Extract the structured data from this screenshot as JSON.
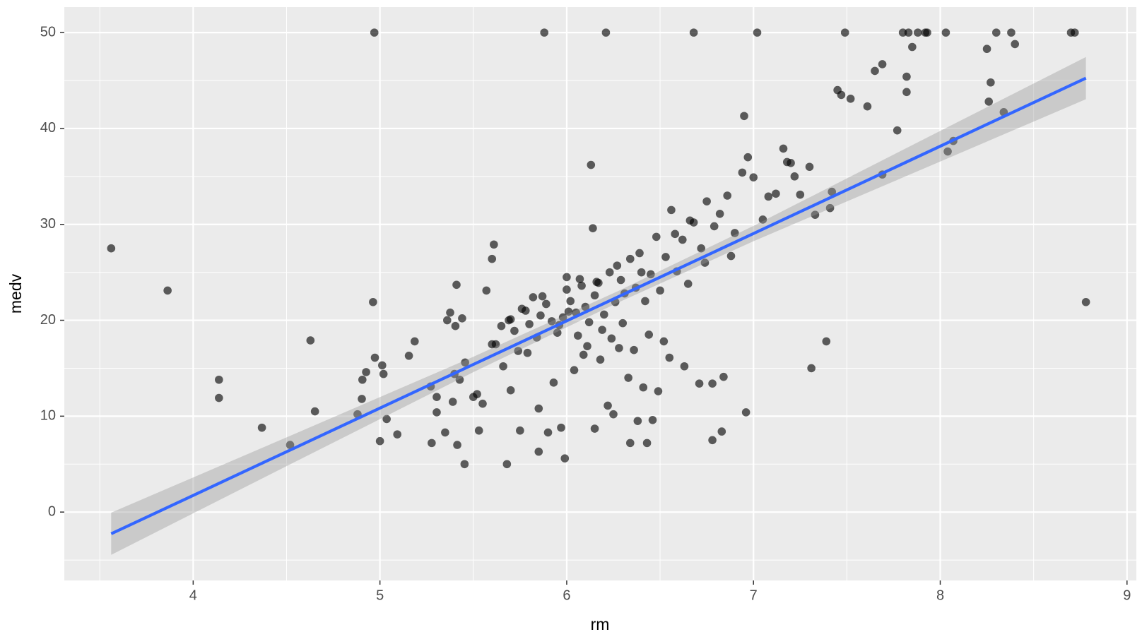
{
  "chart_data": {
    "type": "scatter",
    "x_label": "rm",
    "y_label": "medv",
    "xlim": [
      3.31,
      9.05
    ],
    "ylim": [
      -7.13,
      52.66
    ],
    "xticks": [
      4,
      5,
      6,
      7,
      8,
      9
    ],
    "yticks": [
      0,
      10,
      20,
      30,
      40,
      50
    ],
    "grid": true,
    "series": [
      {
        "name": "points",
        "color": "#000000",
        "x": [
          3.561,
          3.863,
          4.138,
          4.138,
          4.368,
          4.519,
          4.628,
          4.652,
          4.88,
          4.903,
          4.906,
          4.926,
          4.963,
          4.97,
          4.973,
          5.0,
          5.012,
          5.019,
          5.036,
          5.093,
          5.155,
          5.186,
          5.272,
          5.277,
          5.304,
          5.304,
          5.349,
          5.36,
          5.376,
          5.39,
          5.399,
          5.404,
          5.414,
          5.427,
          5.41,
          5.453,
          5.456,
          5.44,
          5.52,
          5.53,
          5.57,
          5.6,
          5.61,
          5.6,
          5.68,
          5.7,
          5.75,
          5.79,
          5.85,
          5.85,
          5.88,
          5.9,
          5.97,
          5.99,
          6.13,
          6.14,
          6.21,
          6.15,
          6.22,
          6.25,
          6.34,
          6.38,
          6.43,
          6.46,
          6.68,
          6.71,
          6.95,
          6.97,
          7.02,
          7.16,
          7.2,
          7.45,
          7.49,
          7.47,
          7.52,
          7.61,
          7.65,
          7.69,
          7.69,
          7.77,
          7.8,
          7.82,
          7.82,
          7.83,
          7.85,
          7.88,
          7.92,
          7.93,
          8.03,
          8.04,
          8.07,
          8.25,
          8.26,
          8.27,
          8.3,
          8.34,
          8.38,
          8.4,
          8.7,
          8.72,
          8.78,
          7.31,
          7.39,
          7.42,
          7.41,
          7.33,
          7.3,
          6.96,
          6.83,
          6.78,
          6.84,
          6.78,
          5.65,
          5.7,
          5.72,
          5.76,
          5.8,
          5.82,
          5.86,
          5.89,
          5.92,
          5.95,
          5.98,
          6.0,
          6.02,
          6.05,
          6.07,
          6.1,
          6.12,
          6.15,
          6.17,
          6.2,
          6.23,
          6.26,
          6.29,
          6.31,
          6.34,
          6.37,
          6.4,
          6.42,
          6.45,
          6.48,
          6.5,
          6.53,
          6.56,
          6.59,
          6.62,
          6.65,
          6.68,
          6.72,
          6.75,
          6.79,
          6.82,
          6.86,
          6.9,
          6.94,
          7.0,
          7.05,
          7.08,
          7.12,
          7.18,
          7.22,
          7.25,
          5.62,
          5.66,
          5.74,
          5.84,
          5.93,
          6.04,
          6.09,
          6.18,
          6.28,
          6.33,
          6.41,
          6.49,
          6.55,
          6.63,
          5.96,
          6.01,
          6.06,
          6.11,
          6.19,
          6.24,
          6.3,
          6.36,
          6.44,
          6.52,
          5.87,
          5.78,
          5.69,
          6.58,
          6.66,
          6.74,
          6.88,
          5.55,
          5.5,
          6.0,
          6.08,
          6.16,
          6.27,
          6.39
        ],
        "values": [
          27.5,
          23.1,
          13.8,
          11.9,
          8.8,
          7.0,
          17.9,
          10.5,
          10.2,
          11.8,
          13.8,
          14.6,
          21.9,
          50,
          16.1,
          7.4,
          15.3,
          14.4,
          9.7,
          8.1,
          16.3,
          17.8,
          13.1,
          7.2,
          12.0,
          10.4,
          8.3,
          20.0,
          20.8,
          11.5,
          14.4,
          19.4,
          7.0,
          13.8,
          23.7,
          5.0,
          15.6,
          20.2,
          12.3,
          8.5,
          23.1,
          17.5,
          27.9,
          26.4,
          5.0,
          12.7,
          8.5,
          16.6,
          10.8,
          6.3,
          50,
          8.3,
          8.8,
          5.6,
          36.2,
          29.6,
          50,
          8.7,
          11.1,
          10.2,
          7.2,
          9.5,
          7.2,
          9.6,
          50,
          13.4,
          41.3,
          37.0,
          50,
          37.9,
          36.4,
          44.0,
          50,
          43.5,
          43.1,
          42.3,
          46.0,
          46.7,
          35.2,
          39.8,
          50,
          45.4,
          43.8,
          50,
          48.5,
          50,
          50,
          50,
          50,
          37.6,
          38.7,
          48.3,
          42.8,
          44.8,
          50,
          41.7,
          50,
          48.8,
          50,
          50,
          21.9,
          15.0,
          17.8,
          33.4,
          31.7,
          31.0,
          36.0,
          10.4,
          8.4,
          7.5,
          14.1,
          13.4,
          19.4,
          20.1,
          18.9,
          21.2,
          19.6,
          22.4,
          20.5,
          21.7,
          19.9,
          18.7,
          20.3,
          23.2,
          22.0,
          20.8,
          24.3,
          21.4,
          19.8,
          22.6,
          23.9,
          20.6,
          25.0,
          21.9,
          24.2,
          22.8,
          26.4,
          23.4,
          25.0,
          22.0,
          24.8,
          28.7,
          23.1,
          26.6,
          31.5,
          25.1,
          28.4,
          23.8,
          30.2,
          27.5,
          32.4,
          29.8,
          31.1,
          33.0,
          29.1,
          35.4,
          34.9,
          30.5,
          32.9,
          33.2,
          36.5,
          35.0,
          33.1,
          17.5,
          15.2,
          16.8,
          18.2,
          13.5,
          14.8,
          16.4,
          15.9,
          17.1,
          14.0,
          13.0,
          12.6,
          16.1,
          15.2,
          19.5,
          20.9,
          18.4,
          17.3,
          19.0,
          18.1,
          19.7,
          16.9,
          18.5,
          17.8,
          22.5,
          21.0,
          20.0,
          29.0,
          30.4,
          26.0,
          26.7,
          11.3,
          12.0,
          24.5,
          23.6,
          24.0,
          25.7,
          27.0
        ]
      }
    ],
    "smooth": {
      "color": "#3366ff",
      "band_color": "#999999",
      "x": [
        3.561,
        4.5,
        5.5,
        6.28,
        7,
        8,
        8.78
      ],
      "values": [
        -2.26,
        6.29,
        15.39,
        22.49,
        29.04,
        38.15,
        45.25
      ],
      "ymin": [
        -4.46,
        4.79,
        14.59,
        21.89,
        28.24,
        36.55,
        43.05
      ],
      "ymax": [
        -0.06,
        7.79,
        16.19,
        23.09,
        29.84,
        39.75,
        47.45
      ]
    }
  }
}
